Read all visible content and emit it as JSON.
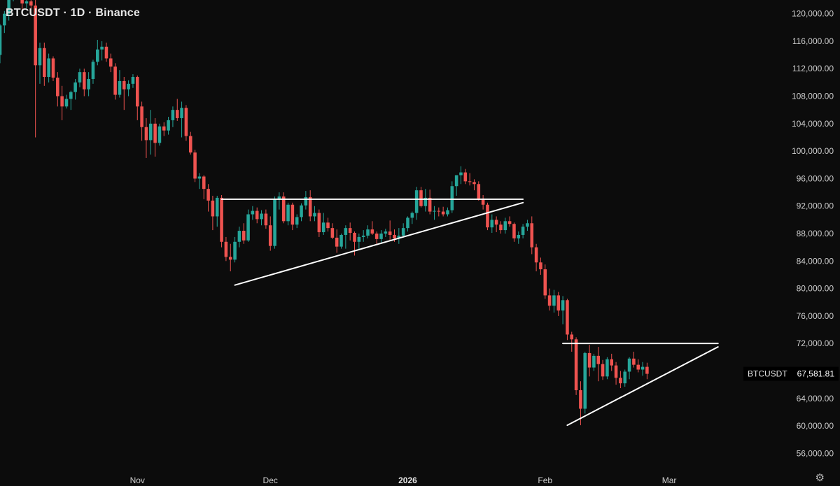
{
  "title": "BTCUSDT · 1D · Binance",
  "settings_icon": "gear-icon",
  "colors": {
    "background": "#0c0c0c",
    "up": "#26a69a",
    "down": "#ef5350",
    "trendline": "#ffffff"
  },
  "price_tag": {
    "label": "BTCUSDT",
    "value": "67,581.81"
  },
  "chart_data": {
    "type": "candlestick",
    "title": "BTCUSDT · 1D · Binance",
    "ylim": [
      54000,
      122000
    ],
    "y_ticks": [
      56000,
      60000,
      64000,
      68000,
      72000,
      76000,
      80000,
      84000,
      88000,
      92000,
      96000,
      100000,
      104000,
      108000,
      112000,
      116000,
      120000
    ],
    "y_tick_labels": [
      "56,000.00",
      "60,000.00",
      "64,000.00",
      "68,000.00",
      "72,000.00",
      "76,000.00",
      "80,000.00",
      "84,000.00",
      "88,000.00",
      "92,000.00",
      "96,000.00",
      "100,000.00",
      "104,000.00",
      "108,000.00",
      "112,000.00",
      "116,000.00",
      "120,000.00"
    ],
    "x_ticks": [
      {
        "label": "Nov",
        "date": "2025-11-01",
        "bold": false
      },
      {
        "label": "Dec",
        "date": "2025-12-01",
        "bold": false
      },
      {
        "label": "2026",
        "date": "2026-01-01",
        "bold": true
      },
      {
        "label": "Feb",
        "date": "2026-02-01",
        "bold": false
      },
      {
        "label": "Mar",
        "date": "2026-03-01",
        "bold": false
      }
    ],
    "x_start": "2025-10-01",
    "x_end": "2026-03-25",
    "candles_start": "2025-10-01",
    "last_price": 67581.81,
    "candles": [
      [
        114000,
        118500,
        112800,
        118300
      ],
      [
        118300,
        120400,
        117200,
        120000
      ],
      [
        120000,
        123000,
        119000,
        122200
      ],
      [
        122200,
        125500,
        121800,
        123500
      ],
      [
        123500,
        126200,
        122500,
        125000
      ],
      [
        125000,
        126000,
        120500,
        121500
      ],
      [
        121500,
        123500,
        120800,
        121800
      ],
      [
        121800,
        122500,
        120500,
        121200
      ],
      [
        121200,
        122000,
        102000,
        112500
      ],
      [
        112500,
        115800,
        109800,
        115000
      ],
      [
        115000,
        115800,
        109500,
        110800
      ],
      [
        110800,
        114200,
        110000,
        113500
      ],
      [
        113500,
        113800,
        110200,
        110700
      ],
      [
        110700,
        111500,
        106500,
        108000
      ],
      [
        108000,
        109500,
        104500,
        106500
      ],
      [
        106500,
        108200,
        106200,
        107600
      ],
      [
        107600,
        108800,
        106000,
        108600
      ],
      [
        108600,
        110500,
        107500,
        110000
      ],
      [
        110000,
        112000,
        109300,
        111500
      ],
      [
        111500,
        112000,
        108000,
        109000
      ],
      [
        109000,
        111500,
        108000,
        110500
      ],
      [
        110500,
        113300,
        109800,
        113000
      ],
      [
        113000,
        116200,
        112500,
        114800
      ],
      [
        114800,
        116000,
        113200,
        115200
      ],
      [
        115200,
        115800,
        113000,
        113500
      ],
      [
        113500,
        114200,
        111500,
        112300
      ],
      [
        112300,
        112800,
        107500,
        108200
      ],
      [
        108200,
        111800,
        107800,
        110200
      ],
      [
        110200,
        110800,
        106000,
        109000
      ],
      [
        109000,
        110300,
        108000,
        109800
      ],
      [
        109800,
        111200,
        109200,
        110800
      ],
      [
        110800,
        111000,
        104500,
        106500
      ],
      [
        106500,
        107200,
        101500,
        103500
      ],
      [
        103500,
        104800,
        99000,
        101600
      ],
      [
        101600,
        106000,
        99500,
        104000
      ],
      [
        104000,
        104800,
        99200,
        101200
      ],
      [
        101200,
        104000,
        100800,
        103600
      ],
      [
        103600,
        104200,
        102200,
        103000
      ],
      [
        103000,
        105000,
        102400,
        104500
      ],
      [
        104500,
        106500,
        103500,
        106000
      ],
      [
        106000,
        107600,
        104400,
        104800
      ],
      [
        104800,
        107200,
        102000,
        106300
      ],
      [
        106300,
        106700,
        101500,
        102200
      ],
      [
        102200,
        102800,
        99500,
        99800
      ],
      [
        99800,
        100200,
        95500,
        96000
      ],
      [
        96000,
        96800,
        94500,
        96300
      ],
      [
        96300,
        96500,
        93000,
        94500
      ],
      [
        94500,
        95200,
        91200,
        92800
      ],
      [
        92800,
        93500,
        88500,
        90500
      ],
      [
        90500,
        93500,
        89000,
        93200
      ],
      [
        93200,
        93600,
        86000,
        86800
      ],
      [
        86800,
        87500,
        84000,
        84600
      ],
      [
        84600,
        86500,
        82500,
        84200
      ],
      [
        84200,
        87500,
        83800,
        86800
      ],
      [
        86800,
        89000,
        86000,
        88400
      ],
      [
        88400,
        89500,
        86500,
        87000
      ],
      [
        87000,
        91500,
        86800,
        90800
      ],
      [
        90800,
        92000,
        90000,
        91300
      ],
      [
        91300,
        91800,
        89500,
        90100
      ],
      [
        90100,
        91400,
        89200,
        90900
      ],
      [
        90900,
        91500,
        88700,
        89200
      ],
      [
        89200,
        90500,
        85500,
        86200
      ],
      [
        86200,
        93400,
        85800,
        93000
      ],
      [
        93000,
        94000,
        91500,
        93400
      ],
      [
        93400,
        94000,
        89500,
        89800
      ],
      [
        89800,
        92500,
        89200,
        92200
      ],
      [
        92200,
        92500,
        88500,
        89300
      ],
      [
        89300,
        90800,
        88800,
        90400
      ],
      [
        90400,
        92400,
        89800,
        92100
      ],
      [
        92100,
        94200,
        91500,
        93300
      ],
      [
        93300,
        94300,
        89800,
        90500
      ],
      [
        90500,
        92000,
        89800,
        91000
      ],
      [
        91000,
        91500,
        87500,
        88200
      ],
      [
        88200,
        91000,
        87800,
        89600
      ],
      [
        89600,
        90300,
        88300,
        88800
      ],
      [
        88800,
        89500,
        87200,
        87400
      ],
      [
        87400,
        88600,
        85200,
        86100
      ],
      [
        86100,
        88000,
        85800,
        87800
      ],
      [
        87800,
        89200,
        85800,
        88800
      ],
      [
        88800,
        89600,
        87000,
        88100
      ],
      [
        88100,
        88300,
        84800,
        86800
      ],
      [
        86800,
        88000,
        85600,
        87500
      ],
      [
        87500,
        88500,
        86800,
        87700
      ],
      [
        87700,
        89200,
        87300,
        88600
      ],
      [
        88600,
        89800,
        87800,
        88000
      ],
      [
        88000,
        88300,
        86500,
        87200
      ],
      [
        87200,
        88500,
        86700,
        88000
      ],
      [
        88000,
        88700,
        87500,
        88300
      ],
      [
        88300,
        89900,
        87000,
        87800
      ],
      [
        87800,
        88600,
        86800,
        87300
      ],
      [
        87300,
        88800,
        86500,
        87700
      ],
      [
        87700,
        89500,
        87400,
        88800
      ],
      [
        88800,
        90500,
        88300,
        90300
      ],
      [
        90300,
        91200,
        89400,
        91000
      ],
      [
        91000,
        94800,
        90000,
        94300
      ],
      [
        94300,
        94800,
        91800,
        92000
      ],
      [
        92000,
        94500,
        91200,
        93200
      ],
      [
        93200,
        94400,
        90800,
        91200
      ],
      [
        91200,
        92000,
        90000,
        91300
      ],
      [
        91300,
        91800,
        90500,
        91200
      ],
      [
        91200,
        91900,
        90500,
        90800
      ],
      [
        90800,
        91800,
        90500,
        91400
      ],
      [
        91400,
        95600,
        91000,
        94900
      ],
      [
        94900,
        96500,
        93500,
        96500
      ],
      [
        96500,
        97800,
        95200,
        96900
      ],
      [
        96900,
        97400,
        95200,
        95600
      ],
      [
        95600,
        96800,
        95000,
        95500
      ],
      [
        95500,
        95900,
        94300,
        95200
      ],
      [
        95200,
        95600,
        92800,
        93100
      ],
      [
        93100,
        93600,
        91500,
        92200
      ],
      [
        92200,
        92500,
        88500,
        88900
      ],
      [
        88900,
        90800,
        88100,
        90000
      ],
      [
        90000,
        90500,
        88200,
        89300
      ],
      [
        89300,
        89800,
        88000,
        88500
      ],
      [
        88500,
        90300,
        88000,
        89800
      ],
      [
        89800,
        90500,
        89000,
        89400
      ],
      [
        89400,
        89600,
        86800,
        87300
      ],
      [
        87300,
        88300,
        86500,
        87800
      ],
      [
        87800,
        89400,
        87300,
        89000
      ],
      [
        89000,
        90000,
        88400,
        89500
      ],
      [
        89500,
        90500,
        85000,
        86000
      ],
      [
        86000,
        86500,
        82500,
        83800
      ],
      [
        83800,
        84500,
        82000,
        82800
      ],
      [
        82800,
        83500,
        78500,
        79000
      ],
      [
        79000,
        80000,
        76800,
        77500
      ],
      [
        77500,
        79800,
        76500,
        79000
      ],
      [
        79000,
        79500,
        76000,
        76800
      ],
      [
        76800,
        78900,
        74800,
        78300
      ],
      [
        78300,
        78500,
        72500,
        73300
      ],
      [
        73300,
        73700,
        70800,
        72600
      ],
      [
        72600,
        72900,
        64500,
        65200
      ],
      [
        65200,
        66500,
        60100,
        62500
      ],
      [
        62500,
        70800,
        61800,
        70600
      ],
      [
        70600,
        71800,
        67200,
        68500
      ],
      [
        68500,
        70500,
        68000,
        70200
      ],
      [
        70200,
        71500,
        66500,
        69000
      ],
      [
        69000,
        69600,
        66700,
        67200
      ],
      [
        67200,
        70000,
        66800,
        69700
      ],
      [
        69700,
        70500,
        68000,
        68800
      ],
      [
        68800,
        69300,
        66000,
        67000
      ],
      [
        67000,
        68000,
        65500,
        66200
      ],
      [
        66200,
        68200,
        65700,
        67900
      ],
      [
        67900,
        70000,
        66800,
        69800
      ],
      [
        69800,
        70800,
        68500,
        68900
      ],
      [
        68900,
        69700,
        67800,
        68200
      ],
      [
        68200,
        69300,
        67300,
        68600
      ],
      [
        68600,
        69200,
        66800,
        67581.81
      ]
    ],
    "trendlines": [
      {
        "name": "resistance-1",
        "points": [
          [
            "2025-11-20",
            93000
          ],
          [
            "2026-01-27",
            93000
          ]
        ]
      },
      {
        "name": "support-1",
        "points": [
          [
            "2025-11-23",
            80500
          ],
          [
            "2026-01-27",
            92500
          ]
        ]
      },
      {
        "name": "resistance-2",
        "points": [
          [
            "2026-02-05",
            72000
          ],
          [
            "2026-03-12",
            72000
          ]
        ]
      },
      {
        "name": "support-2",
        "points": [
          [
            "2026-02-06",
            60100
          ],
          [
            "2026-03-12",
            71500
          ]
        ]
      }
    ]
  }
}
